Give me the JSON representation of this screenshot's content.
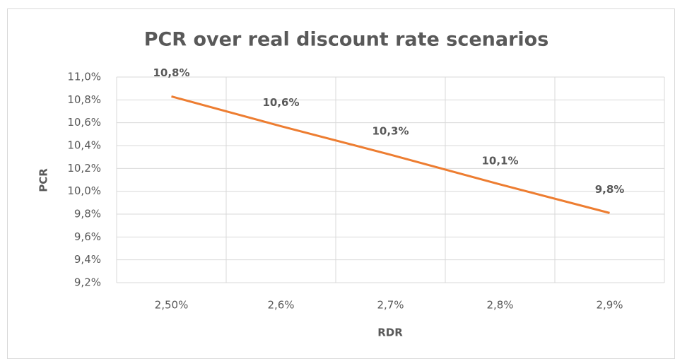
{
  "chart_data": {
    "type": "line",
    "title": "PCR over real discount rate scenarios",
    "x_label": "RDR",
    "y_label": "PCR",
    "categories": [
      "2,50%",
      "2,6%",
      "2,7%",
      "2,8%",
      "2,9%"
    ],
    "series": [
      {
        "name": "PCR",
        "color": "#ed7d31",
        "values": [
          10.83,
          10.57,
          10.32,
          10.06,
          9.81
        ],
        "value_labels": [
          "10,8%",
          "10,6%",
          "10,3%",
          "10,1%",
          "9,8%"
        ]
      }
    ],
    "ylim": [
      9.2,
      11.0
    ],
    "yticks": [
      {
        "value": 9.2,
        "label": "9,2%"
      },
      {
        "value": 9.4,
        "label": "9,4%"
      },
      {
        "value": 9.6,
        "label": "9,6%"
      },
      {
        "value": 9.8,
        "label": "9,8%"
      },
      {
        "value": 10.0,
        "label": "10,0%"
      },
      {
        "value": 10.2,
        "label": "10,2%"
      },
      {
        "value": 10.4,
        "label": "10,4%"
      },
      {
        "value": 10.6,
        "label": "10,6%"
      },
      {
        "value": 10.8,
        "label": "10,8%"
      },
      {
        "value": 11.0,
        "label": "11,0%"
      }
    ],
    "grid": true
  }
}
